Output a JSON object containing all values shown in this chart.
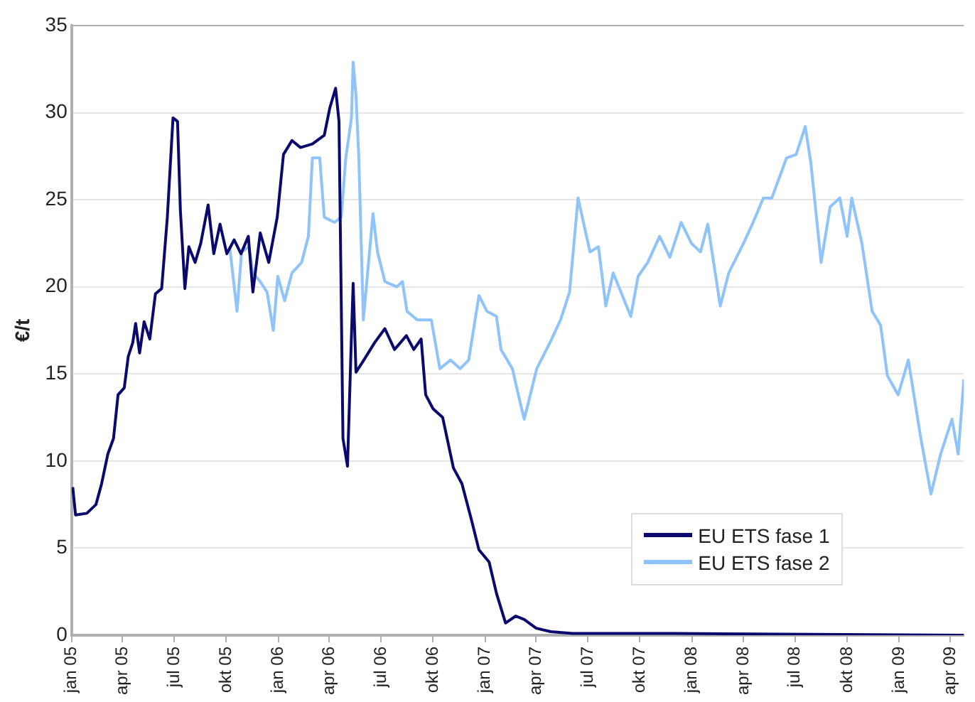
{
  "chart_data": {
    "type": "line",
    "ylabel": "€/t",
    "xlim": [
      "2005-01-01",
      "2009-04-25"
    ],
    "ylim": [
      0,
      35
    ],
    "yticks": [
      0,
      5,
      10,
      15,
      20,
      25,
      30,
      35
    ],
    "xticks": [
      {
        "value": "2005-01-01",
        "label": "jan 05"
      },
      {
        "value": "2005-04-01",
        "label": "apr 05"
      },
      {
        "value": "2005-07-01",
        "label": "jul 05"
      },
      {
        "value": "2005-10-01",
        "label": "okt 05"
      },
      {
        "value": "2006-01-01",
        "label": "jan 06"
      },
      {
        "value": "2006-04-01",
        "label": "apr 06"
      },
      {
        "value": "2006-07-01",
        "label": "jul 06"
      },
      {
        "value": "2006-10-01",
        "label": "okt 06"
      },
      {
        "value": "2007-01-01",
        "label": "jan 07"
      },
      {
        "value": "2007-04-01",
        "label": "apr 07"
      },
      {
        "value": "2007-07-01",
        "label": "jul 07"
      },
      {
        "value": "2007-10-01",
        "label": "okt 07"
      },
      {
        "value": "2008-01-01",
        "label": "jan 08"
      },
      {
        "value": "2008-04-01",
        "label": "apr 08"
      },
      {
        "value": "2008-07-01",
        "label": "jul 08"
      },
      {
        "value": "2008-10-01",
        "label": "okt 08"
      },
      {
        "value": "2009-01-01",
        "label": "jan 09"
      },
      {
        "value": "2009-04-01",
        "label": "apr 09"
      }
    ],
    "grid": "y",
    "legend": "bottom right",
    "marker": "none",
    "line_style": "solid",
    "series": [
      {
        "name": "EU ETS fase 1",
        "color": "#0a0a6e",
        "x": [
          "2005-01-03",
          "2005-01-08",
          "2005-01-28",
          "2005-02-13",
          "2005-02-23",
          "2005-03-06",
          "2005-03-16",
          "2005-03-24",
          "2005-04-04",
          "2005-04-11",
          "2005-04-19",
          "2005-04-24",
          "2005-05-01",
          "2005-05-09",
          "2005-05-19",
          "2005-05-29",
          "2005-06-09",
          "2005-06-19",
          "2005-06-29",
          "2005-07-07",
          "2005-07-12",
          "2005-07-20",
          "2005-07-27",
          "2005-08-07",
          "2005-08-17",
          "2005-08-30",
          "2005-09-09",
          "2005-09-20",
          "2005-10-02",
          "2005-10-15",
          "2005-10-27",
          "2005-11-09",
          "2005-11-17",
          "2005-11-30",
          "2005-12-15",
          "2005-12-30",
          "2006-01-10",
          "2006-01-25",
          "2006-02-09",
          "2006-03-02",
          "2006-03-23",
          "2006-04-02",
          "2006-04-12",
          "2006-04-18",
          "2006-04-25",
          "2006-05-03",
          "2006-05-10",
          "2006-05-13",
          "2006-05-18",
          "2006-05-30",
          "2006-06-20",
          "2006-07-08",
          "2006-07-25",
          "2006-08-15",
          "2006-08-28",
          "2006-09-10",
          "2006-09-18",
          "2006-10-01",
          "2006-10-18",
          "2006-11-06",
          "2006-11-21",
          "2006-12-08",
          "2006-12-21",
          "2007-01-08",
          "2007-01-21",
          "2007-02-06",
          "2007-02-24",
          "2007-03-11",
          "2007-04-01",
          "2007-04-27",
          "2007-06-04",
          "2007-12-01",
          "2009-04-25"
        ],
        "values": [
          8.5,
          6.9,
          7.0,
          7.5,
          8.7,
          10.4,
          11.3,
          13.8,
          14.2,
          16,
          16.8,
          17.9,
          16.2,
          18,
          17,
          19.6,
          19.9,
          24,
          29.7,
          29.5,
          24.4,
          19.9,
          22.3,
          21.4,
          22.5,
          24.7,
          21.9,
          23.6,
          21.9,
          22.7,
          21.9,
          22.9,
          19.7,
          23.1,
          21.4,
          24,
          27.6,
          28.4,
          28,
          28.2,
          28.7,
          30.3,
          31.4,
          29.5,
          11.3,
          9.7,
          17.2,
          20.2,
          15.1,
          15.7,
          16.8,
          17.6,
          16.4,
          17.2,
          16.4,
          17,
          13.8,
          13,
          12.5,
          9.6,
          8.7,
          6.6,
          4.9,
          4.2,
          2.4,
          0.7,
          1.1,
          0.9,
          0.4,
          0.2,
          0.1,
          0.1,
          0
        ]
      },
      {
        "name": "EU ETS fase 2",
        "color": "#8ec3fb",
        "x": [
          "2005-10-07",
          "2005-10-20",
          "2005-10-28",
          "2005-11-10",
          "2005-11-17",
          "2005-11-30",
          "2005-12-12",
          "2005-12-23",
          "2005-12-31",
          "2006-01-12",
          "2006-01-25",
          "2006-02-11",
          "2006-02-23",
          "2006-03-02",
          "2006-03-15",
          "2006-03-23",
          "2006-04-10",
          "2006-04-22",
          "2006-04-30",
          "2006-05-10",
          "2006-05-13",
          "2006-05-18",
          "2006-05-23",
          "2006-05-31",
          "2006-06-17",
          "2006-06-25",
          "2006-07-08",
          "2006-07-29",
          "2006-08-08",
          "2006-08-16",
          "2006-09-03",
          "2006-09-28",
          "2006-10-13",
          "2006-11-01",
          "2006-11-18",
          "2006-12-03",
          "2006-12-21",
          "2007-01-04",
          "2007-01-21",
          "2007-01-29",
          "2007-02-18",
          "2007-03-02",
          "2007-03-11",
          "2007-04-02",
          "2007-04-27",
          "2007-05-14",
          "2007-05-30",
          "2007-06-14",
          "2007-07-05",
          "2007-07-20",
          "2007-08-02",
          "2007-08-15",
          "2007-09-15",
          "2007-09-28",
          "2007-10-15",
          "2007-11-05",
          "2007-11-23",
          "2007-12-13",
          "2007-12-31",
          "2008-01-16",
          "2008-01-29",
          "2008-02-20",
          "2008-03-06",
          "2008-04-01",
          "2008-04-18",
          "2008-05-06",
          "2008-05-21",
          "2008-06-16",
          "2008-07-03",
          "2008-07-19",
          "2008-07-29",
          "2008-08-16",
          "2008-09-01",
          "2008-09-18",
          "2008-10-01",
          "2008-10-09",
          "2008-10-27",
          "2008-11-14",
          "2008-11-29",
          "2008-12-11",
          "2008-12-30",
          "2009-01-17",
          "2009-02-07",
          "2009-02-26",
          "2009-03-15",
          "2009-04-04",
          "2009-04-15",
          "2009-04-25"
        ],
        "values": [
          22.3,
          18.6,
          22,
          22.3,
          20.8,
          20.3,
          19.7,
          17.5,
          20.6,
          19.2,
          20.8,
          21.4,
          22.9,
          27.4,
          27.4,
          24,
          23.7,
          24,
          27.4,
          29.7,
          32.9,
          31,
          27.4,
          18.1,
          24.2,
          22,
          20.3,
          20,
          20.3,
          18.6,
          18.1,
          18.1,
          15.3,
          15.8,
          15.3,
          15.8,
          19.5,
          18.6,
          18.3,
          16.4,
          15.3,
          13.6,
          12.4,
          15.3,
          16.9,
          18.1,
          19.7,
          25.1,
          22,
          22.3,
          18.9,
          20.8,
          18.3,
          20.6,
          21.4,
          22.9,
          21.7,
          23.7,
          22.5,
          22,
          23.6,
          18.9,
          20.8,
          22.5,
          23.7,
          25.1,
          25.1,
          27.4,
          27.6,
          29.2,
          27.1,
          21.4,
          24.6,
          25.1,
          22.9,
          25.1,
          22.5,
          18.6,
          17.8,
          14.9,
          13.8,
          15.8,
          11.5,
          8.1,
          10.4,
          12.4,
          10.4,
          14.7
        ]
      }
    ]
  }
}
